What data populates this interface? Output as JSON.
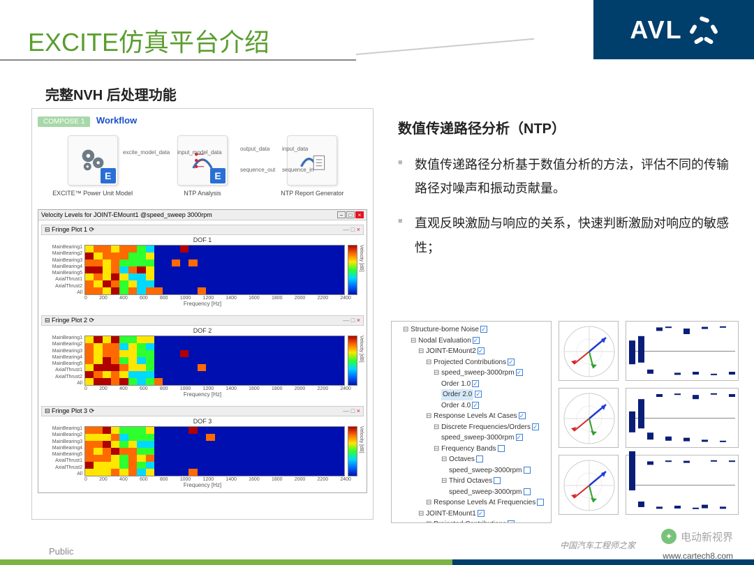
{
  "brand": {
    "name": "AVL",
    "logo_bg": "#003f6c"
  },
  "title": "EXCITE仿真平台介绍",
  "subtitle": "完整NVH 后处理功能",
  "workflow": {
    "badge": "COMPOSE 1",
    "label": "Workflow",
    "nodes": [
      {
        "caption": "EXCITE™ Power Unit Model"
      },
      {
        "caption": "NTP Analysis"
      },
      {
        "caption": "NTP Report Generator"
      }
    ],
    "arrows": [
      "excite_model_data",
      "input_model_data",
      "output_data",
      "input_data",
      "sequence_out",
      "sequence_in"
    ]
  },
  "heatmaps": {
    "window_title": "Velocity Levels for JOINT-EMount1 @speed_sweep 3000rpm",
    "type": "heatmap",
    "ylabels": [
      "MainBearing1",
      "MainBearing2",
      "MainBearing3",
      "MainBearing4",
      "MainBearing5",
      "AxialThrust1",
      "AxialThrust2",
      "All"
    ],
    "xlabel": "Frequency [Hz]",
    "cbar_label": "Velocity [dB]",
    "xlim": [
      0,
      2400
    ],
    "xtick_step": 200,
    "panels": [
      {
        "title": "Fringe Plot 1",
        "dof": "DOF 1"
      },
      {
        "title": "Fringe Plot 2",
        "dof": "DOF 2"
      },
      {
        "title": "Fringe Plot 3",
        "dof": "DOF 3"
      }
    ],
    "colormap": [
      "#b00000",
      "#ff6a00",
      "#ffe600",
      "#2eff2e",
      "#00d9ff",
      "#006aff",
      "#0010b0"
    ]
  },
  "right": {
    "heading": "数值传递路径分析（NTP）",
    "bullets": [
      "数值传递路径分析基于数值分析的方法，评估不同的传输路径对噪声和振动贡献量。",
      "直观反映激励与响应的关系，快速判断激励对响应的敏感性；"
    ]
  },
  "tree": {
    "items": [
      {
        "label": "Structure-borne Noise",
        "checked": true
      },
      {
        "label": "Nodal Evaluation",
        "checked": true,
        "indent": 1
      },
      {
        "label": "JOINT-EMount2",
        "checked": true,
        "indent": 2
      },
      {
        "label": "Projected Contributions",
        "checked": true,
        "indent": 3
      },
      {
        "label": "speed_sweep-3000rpm",
        "checked": true,
        "indent": 4
      },
      {
        "label": "Order 1.0",
        "checked": true,
        "indent": 5,
        "leaf": true
      },
      {
        "label": "Order 2.0",
        "checked": true,
        "indent": 5,
        "leaf": true,
        "selected": true
      },
      {
        "label": "Order 4.0",
        "checked": true,
        "indent": 5,
        "leaf": true
      },
      {
        "label": "Response Levels At Cases",
        "checked": true,
        "indent": 3
      },
      {
        "label": "Discrete Frequencies/Orders",
        "checked": true,
        "indent": 4
      },
      {
        "label": "speed_sweep-3000rpm",
        "checked": true,
        "indent": 5,
        "leaf": true
      },
      {
        "label": "Frequency Bands",
        "checked": false,
        "indent": 4
      },
      {
        "label": "Octaves",
        "checked": false,
        "indent": 5
      },
      {
        "label": "speed_sweep-3000rpm",
        "checked": false,
        "indent": 6,
        "leaf": true
      },
      {
        "label": "Third Octaves",
        "checked": false,
        "indent": 5
      },
      {
        "label": "speed_sweep-3000rpm",
        "checked": false,
        "indent": 6,
        "leaf": true
      },
      {
        "label": "Response Levels At Frequencies",
        "checked": false,
        "indent": 3
      },
      {
        "label": "JOINT-EMount1",
        "checked": true,
        "indent": 2
      },
      {
        "label": "Projected Contributions",
        "checked": true,
        "indent": 3
      }
    ]
  },
  "vector_plots": {
    "rows": 3,
    "arrow_colors": {
      "a": "#d62728",
      "b": "#2ca02c",
      "c": "#1f3bd6"
    },
    "bar_color": "#0a1e78",
    "bars": [
      [
        42,
        48,
        8,
        -6,
        -3,
        4,
        -10,
        5,
        -4,
        3,
        -2,
        5
      ],
      [
        38,
        52,
        12,
        -5,
        8,
        -3,
        6,
        -8,
        4,
        -2,
        3,
        -5
      ],
      [
        70,
        10,
        -6,
        4,
        -3,
        5,
        -4,
        3,
        6,
        -2,
        4,
        -3
      ]
    ]
  },
  "footer": "Public",
  "watermarks": {
    "wx": "电动新视界",
    "site": "中国汽车工程师之家",
    "url": "www.cartech8.com"
  },
  "accent_colors": {
    "green": "#7cb342",
    "navy": "#003f6c",
    "title": "#5a9e2f"
  }
}
